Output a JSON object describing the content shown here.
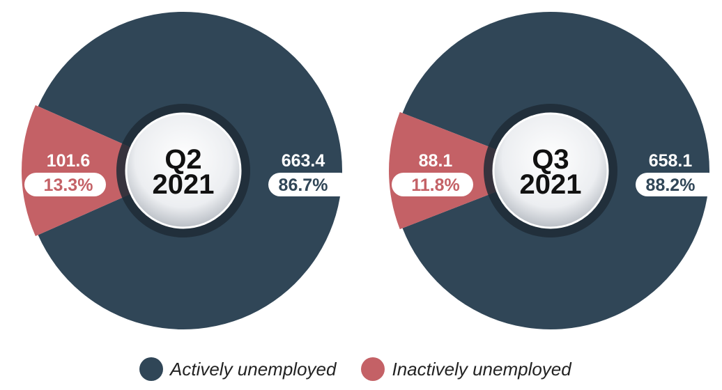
{
  "colors": {
    "active": "#304657",
    "inactive": "#c46166",
    "ring": "#1f2b36"
  },
  "chart_data": [
    {
      "type": "pie",
      "center_label_line1": "Q2",
      "center_label_line2": "2021",
      "series": [
        {
          "name": "Actively unemployed",
          "value": 663.4,
          "percent_label": "86.7%",
          "value_label": "663.4"
        },
        {
          "name": "Inactively unemployed",
          "value": 101.6,
          "percent_label": "13.3%",
          "value_label": "101.6"
        }
      ]
    },
    {
      "type": "pie",
      "center_label_line1": "Q3",
      "center_label_line2": "2021",
      "series": [
        {
          "name": "Actively unemployed",
          "value": 658.1,
          "percent_label": "88.2%",
          "value_label": "658.1"
        },
        {
          "name": "Inactively unemployed",
          "value": 88.1,
          "percent_label": "11.8%",
          "value_label": "88.1"
        }
      ]
    }
  ],
  "legend": [
    {
      "label": "Actively unemployed",
      "color": "#304657"
    },
    {
      "label": "Inactively unemployed",
      "color": "#c46166"
    }
  ]
}
